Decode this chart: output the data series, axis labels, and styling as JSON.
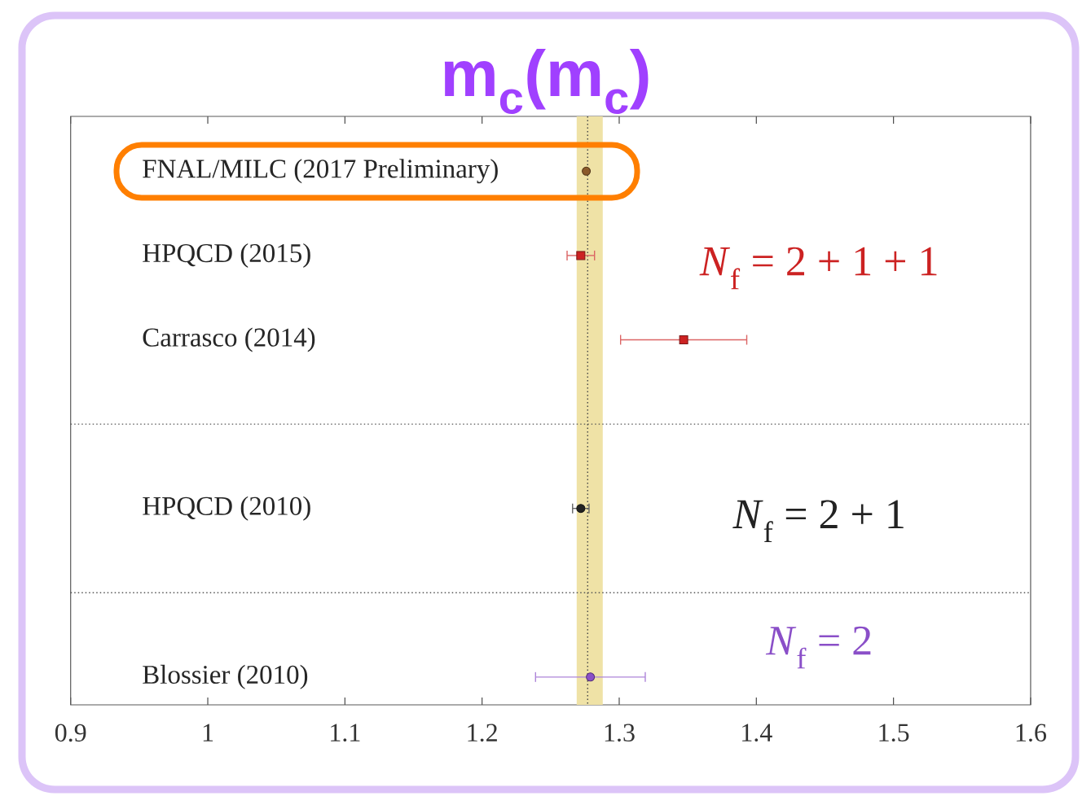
{
  "chart_data": {
    "type": "scatter",
    "title": "m$_{c}$(m$_{c}$)",
    "orientation": "horizontal",
    "categories": [
      "FNAL/MILC (2017 Preliminary)",
      "HPQCD (2015)",
      "Carrasco (2014)",
      null,
      "HPQCD (2010)",
      null,
      "Blossier (2010)"
    ],
    "series": [
      {
        "color": "#8b5a2b",
        "marker": "circle",
        "values": [
          1.276,
          null,
          null,
          null,
          null,
          null,
          null
        ]
      },
      {
        "name": "*N*$_{f}$ = 2 + 1 + 1",
        "color": "#cc2222",
        "marker": "square",
        "values": [
          null,
          1.272,
          1.347,
          null,
          null,
          null,
          null
        ],
        "errors": [
          null,
          0.01,
          0.046,
          null,
          null,
          null,
          null
        ]
      },
      {
        "name": "*N*$_{f}$ = 2 + 1",
        "color": "#222222",
        "marker": "circle",
        "values": [
          null,
          null,
          null,
          null,
          1.272,
          null,
          null
        ],
        "errors": [
          null,
          null,
          null,
          null,
          0.006,
          null,
          null
        ]
      },
      {
        "name": "*N*$_{f}$ = 2",
        "color": "#8a4fc8",
        "marker": "circle",
        "values": [
          null,
          null,
          null,
          null,
          null,
          null,
          1.279
        ],
        "errors": [
          null,
          null,
          null,
          null,
          null,
          null,
          0.04
        ]
      }
    ],
    "xlim": [
      0.9,
      1.6
    ],
    "xticks": [
      0.9,
      1,
      1.1,
      1.2,
      1.3,
      1.4,
      1.5,
      1.6
    ],
    "bands": [
      {
        "axis": "x",
        "from": 1.269,
        "to": 1.288,
        "color": "#efe2a6"
      }
    ],
    "ref_lines": [
      {
        "axis": "x",
        "value": 1.277,
        "color": "#444444",
        "line_style": "dotted"
      }
    ]
  }
}
